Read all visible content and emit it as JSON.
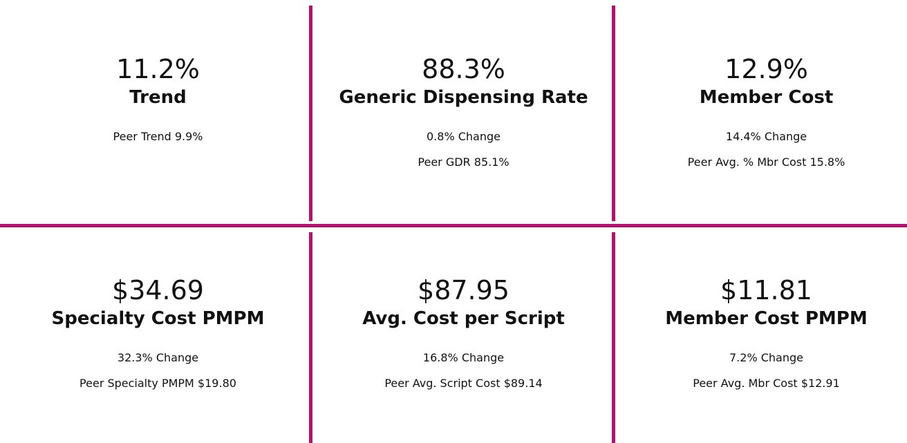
{
  "tiles": [
    {
      "value": "11.2%",
      "label": "Trend",
      "notes": [
        "Peer Trend 9.9%"
      ]
    },
    {
      "value": "88.3%",
      "label": "Generic Dispensing Rate",
      "notes": [
        "0.8% Change",
        "Peer GDR 85.1%"
      ]
    },
    {
      "value": "12.9%",
      "label": "Member Cost",
      "notes": [
        "14.4% Change",
        "Peer Avg. % Mbr Cost 15.8%"
      ]
    },
    {
      "value": "$34.69",
      "label": "Specialty Cost PMPM",
      "notes": [
        "32.3% Change",
        "Peer Specialty PMPM $19.80"
      ]
    },
    {
      "value": "$87.95",
      "label": "Avg. Cost per Script",
      "notes": [
        "16.8% Change",
        "Peer Avg. Script Cost $89.14"
      ]
    },
    {
      "value": "$11.81",
      "label": "Member Cost PMPM",
      "notes": [
        "7.2% Change",
        "Peer Avg. Mbr Cost $12.91"
      ]
    }
  ]
}
